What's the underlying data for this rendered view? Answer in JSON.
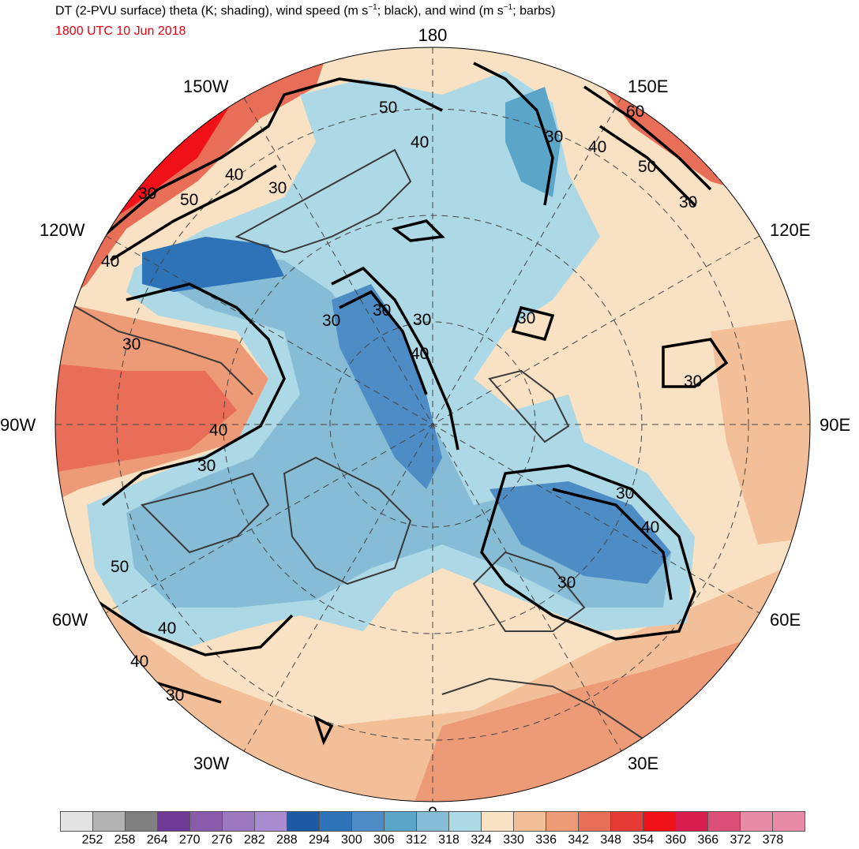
{
  "header": {
    "title_main": "DT (2-PVU surface) theta (K; shading), wind speed (m s",
    "title_sup1": "−1",
    "title_mid": "; black), and wind (m s",
    "title_sup2": "−1",
    "title_end": "; barbs)",
    "valid_time": "1800 UTC 10 Jun 2018"
  },
  "map": {
    "projection": "polar-stereographic-north",
    "longitude_labels": {
      "top": "180",
      "upper_left": "150W",
      "upper_right": "150E",
      "left_upper": "120W",
      "right_upper": "120E",
      "left": "90W",
      "right": "90E",
      "left_lower": "60W",
      "right_lower": "60E",
      "lower_left": "30W",
      "lower_right": "30E",
      "bottom": "0"
    },
    "contour_labels": [
      "50",
      "40",
      "60",
      "40",
      "50",
      "30",
      "30",
      "40",
      "30",
      "50",
      "40",
      "30",
      "30",
      "30",
      "30",
      "40",
      "30",
      "30",
      "40",
      "30",
      "30",
      "40",
      "30",
      "50",
      "40",
      "40",
      "30",
      "30"
    ]
  },
  "colorbar": {
    "ticks": [
      "252",
      "258",
      "264",
      "270",
      "276",
      "282",
      "288",
      "294",
      "300",
      "306",
      "312",
      "318",
      "324",
      "330",
      "336",
      "342",
      "348",
      "354",
      "360",
      "366",
      "372",
      "378"
    ],
    "colors": [
      "#e3e3e3",
      "#b3b3b3",
      "#808080",
      "#6f3b97",
      "#8a5bab",
      "#9c78c0",
      "#a98bd0",
      "#1e5aa3",
      "#2e72b8",
      "#4d8cc4",
      "#5ba5c9",
      "#86bcd5",
      "#add8e6",
      "#f9e1c3",
      "#f3bf99",
      "#ed9a76",
      "#e86e58",
      "#e53a35",
      "#ef1018",
      "#d81c4e",
      "#dc4f78",
      "#e78ba8"
    ]
  }
}
